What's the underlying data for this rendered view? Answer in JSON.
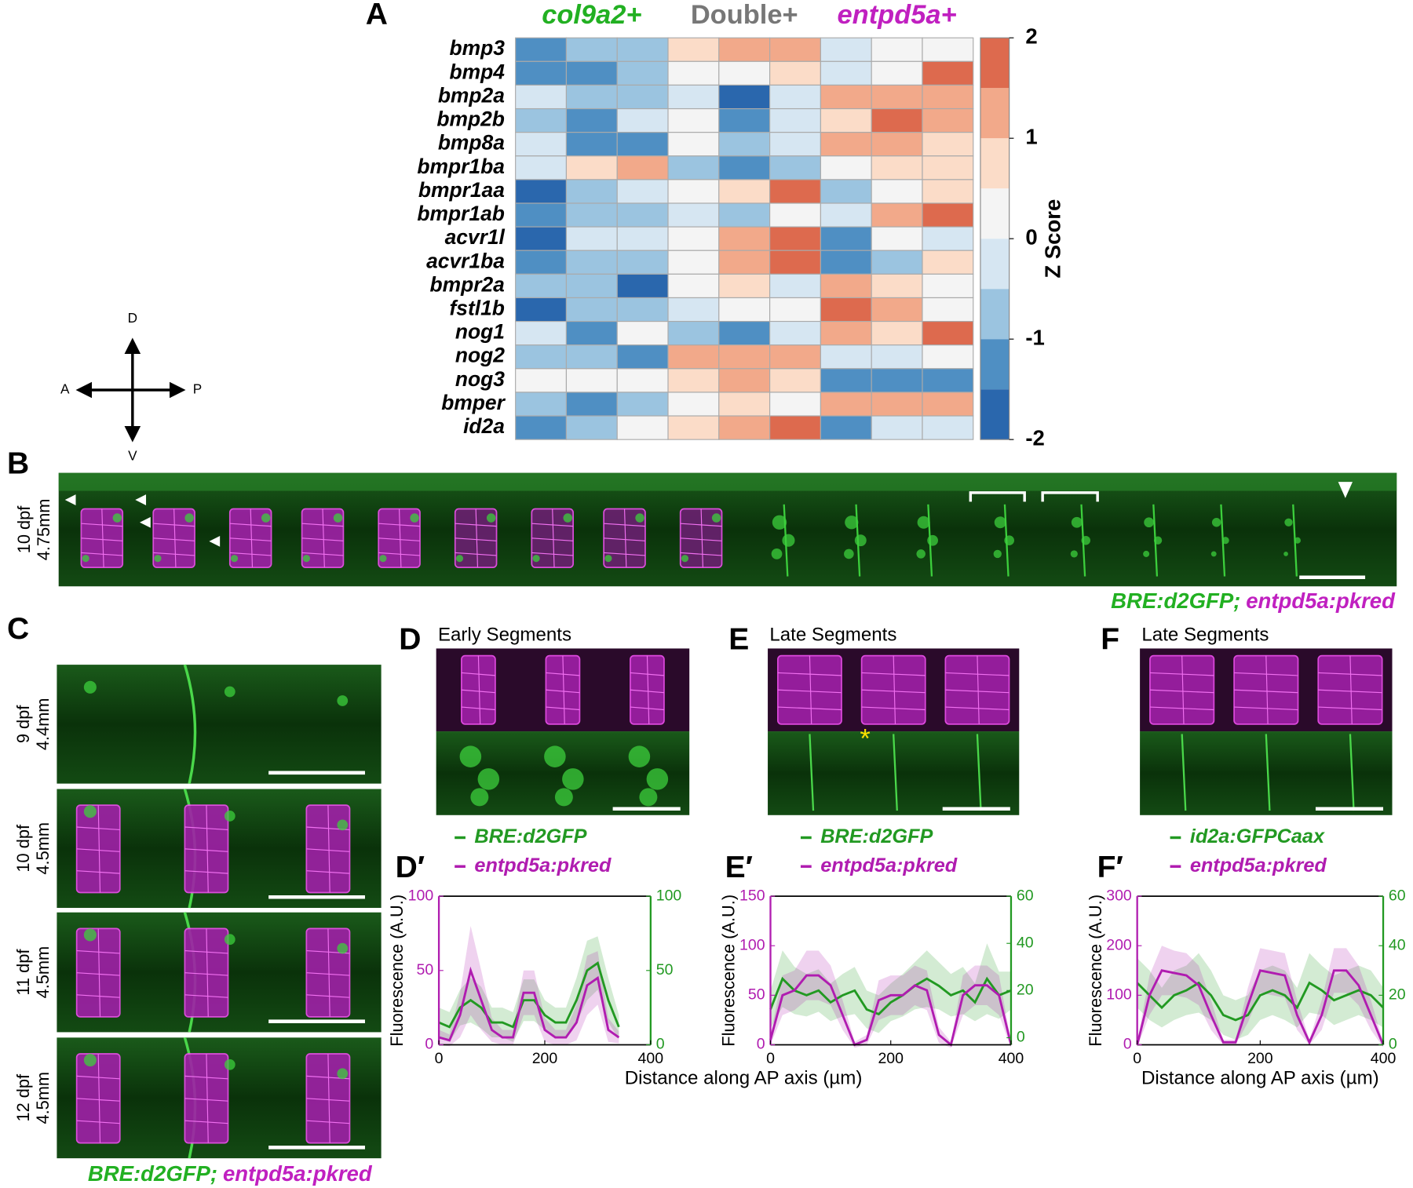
{
  "panel_labels": [
    "A",
    "B",
    "C",
    "D",
    "E",
    "F",
    "D′",
    "E′",
    "F′"
  ],
  "compass": {
    "up": "D",
    "down": "V",
    "left": "A",
    "right": "P"
  },
  "panel_b": {
    "stage": "10 dpf",
    "size": "4.75mm",
    "caption": [
      "BRE:d2GFP;",
      "entpd5a:pkred"
    ]
  },
  "panel_c": {
    "rows": [
      {
        "stage": "9 dpf",
        "size": "4.4mm"
      },
      {
        "stage": "10 dpf",
        "size": "4.5mm"
      },
      {
        "stage": "11 dpf",
        "size": "4.5mm"
      },
      {
        "stage": "12 dpf",
        "size": "4.5mm"
      }
    ],
    "caption": [
      "BRE:d2GFP;",
      "entpd5a:pkred"
    ]
  },
  "panel_d": {
    "title": "Early Segments"
  },
  "panel_e": {
    "title": "Late Segments"
  },
  "panel_f": {
    "title": "Late Segments"
  },
  "chart_data": [
    {
      "type": "heatmap",
      "groups": [
        {
          "name": "col9a2+",
          "color": "#22b022"
        },
        {
          "name": "Double+",
          "color": "#777777"
        },
        {
          "name": "entpd5a+",
          "color": "#c020c0"
        }
      ],
      "rows": [
        "bmp3",
        "bmp4",
        "bmp2a",
        "bmp2b",
        "bmp8a",
        "bmpr1ba",
        "bmpr1aa",
        "bmpr1ab",
        "acvr1l",
        "acvr1ba",
        "bmpr2a",
        "fstl1b",
        "nog1",
        "nog2",
        "nog3",
        "bmper",
        "id2a"
      ],
      "values": [
        [
          -1.2,
          -0.8,
          -0.8,
          0.7,
          1.2,
          1.2,
          -0.3,
          0.2,
          0.2
        ],
        [
          -1.2,
          -1.2,
          -0.8,
          0.2,
          0.2,
          0.7,
          -0.3,
          0.2,
          1.7
        ],
        [
          -0.3,
          -0.7,
          -0.7,
          -0.3,
          -1.7,
          -0.3,
          1.2,
          1.2,
          1.2
        ],
        [
          -0.7,
          -1.2,
          -0.3,
          0.2,
          -1.2,
          -0.3,
          0.7,
          1.7,
          1.2
        ],
        [
          -0.3,
          -1.2,
          -1.2,
          0.2,
          -0.7,
          -0.3,
          1.2,
          1.2,
          0.7
        ],
        [
          -0.3,
          0.7,
          1.2,
          -0.7,
          -1.2,
          -0.7,
          0.2,
          0.7,
          0.7
        ],
        [
          -1.7,
          -0.7,
          -0.3,
          0.2,
          0.7,
          1.7,
          -0.7,
          0.2,
          0.7
        ],
        [
          -1.2,
          -0.7,
          -0.7,
          -0.3,
          -0.7,
          0.2,
          -0.3,
          1.2,
          1.7
        ],
        [
          -1.7,
          -0.3,
          -0.3,
          0.2,
          1.2,
          1.7,
          -1.2,
          0.2,
          -0.3
        ],
        [
          -1.2,
          -0.7,
          -0.7,
          0.2,
          1.2,
          1.7,
          -1.2,
          -0.7,
          0.7
        ],
        [
          -0.7,
          -0.7,
          -1.7,
          0.2,
          0.7,
          -0.3,
          1.2,
          0.7,
          0.2
        ],
        [
          -1.7,
          -0.7,
          -0.7,
          -0.3,
          0.2,
          0.2,
          1.7,
          1.2,
          0.2
        ],
        [
          -0.3,
          -1.2,
          0.2,
          -0.7,
          -1.2,
          -0.3,
          1.2,
          0.7,
          1.7
        ],
        [
          -0.7,
          -0.7,
          -1.2,
          1.2,
          1.2,
          1.2,
          -0.3,
          -0.3,
          0.2
        ],
        [
          0.2,
          0.2,
          0.2,
          0.7,
          1.2,
          0.7,
          -1.2,
          -1.2,
          -1.2
        ],
        [
          -0.7,
          -1.2,
          -0.7,
          0.2,
          0.7,
          0.2,
          1.2,
          1.2,
          1.2
        ],
        [
          -1.2,
          -0.7,
          0.2,
          0.7,
          1.2,
          1.7,
          -1.2,
          -0.3,
          -0.3
        ]
      ],
      "colorbar": {
        "label": "Z Score",
        "lim": [
          -2,
          2
        ],
        "ticks": [
          2,
          1,
          0,
          -1,
          -2
        ],
        "colors": [
          "#2a67ad",
          "#4f8fc3",
          "#9bc4e0",
          "#d6e6f2",
          "#f4f4f4",
          "#fbdcc8",
          "#f2a98a",
          "#dd6a4e"
        ]
      }
    },
    {
      "type": "line",
      "ylabel": "Fluorescence (A.U.)",
      "xlim": [
        0,
        400
      ],
      "xticks": [
        0,
        200,
        400
      ],
      "ylim": [
        0,
        100
      ],
      "yticks": [
        0,
        50,
        100
      ],
      "y2lim": [
        0,
        100
      ],
      "y2ticks": [
        0,
        50,
        100
      ],
      "x": [
        0,
        20,
        40,
        60,
        80,
        100,
        120,
        140,
        160,
        180,
        200,
        220,
        240,
        260,
        280,
        300,
        320,
        340
      ],
      "series": [
        {
          "name": "BRE:d2GFP",
          "color": "#229922",
          "axis": "y2",
          "values": [
            15,
            12,
            25,
            30,
            25,
            15,
            15,
            12,
            30,
            30,
            20,
            15,
            15,
            30,
            50,
            55,
            30,
            12
          ],
          "errors": [
            10,
            10,
            12,
            15,
            14,
            10,
            10,
            10,
            14,
            14,
            10,
            10,
            10,
            15,
            20,
            18,
            15,
            8
          ]
        },
        {
          "name": "entpd5a:pkred",
          "color": "#b01cb0",
          "values": [
            5,
            3,
            20,
            50,
            30,
            10,
            5,
            5,
            35,
            35,
            10,
            5,
            5,
            15,
            40,
            45,
            10,
            5
          ],
          "errors": [
            5,
            4,
            15,
            30,
            20,
            8,
            5,
            5,
            15,
            15,
            8,
            5,
            5,
            12,
            20,
            18,
            8,
            4
          ]
        }
      ]
    },
    {
      "type": "line",
      "xlabel": "Distance along AP axis (µm)",
      "ylabel": "Fluorescence (A.U.)",
      "xlim": [
        0,
        400
      ],
      "xticks": [
        0,
        200,
        400
      ],
      "ylim": [
        0,
        150
      ],
      "yticks": [
        0,
        50,
        100,
        150
      ],
      "y2lim": [
        -3,
        60
      ],
      "y2ticks": [
        0,
        20,
        40,
        60
      ],
      "x": [
        0,
        20,
        40,
        60,
        80,
        100,
        120,
        140,
        160,
        180,
        200,
        220,
        240,
        260,
        280,
        300,
        320,
        340,
        360,
        380,
        400
      ],
      "series": [
        {
          "name": "BRE:d2GFP",
          "color": "#229922",
          "axis": "y2",
          "values": [
            12,
            25,
            20,
            18,
            20,
            15,
            18,
            20,
            12,
            10,
            15,
            18,
            22,
            25,
            22,
            18,
            20,
            15,
            25,
            18,
            20
          ],
          "errors": [
            8,
            12,
            10,
            9,
            9,
            8,
            9,
            10,
            8,
            8,
            8,
            9,
            10,
            12,
            10,
            9,
            10,
            8,
            15,
            10,
            8
          ]
        },
        {
          "name": "entpd5a:pkred",
          "color": "#b01cb0",
          "values": [
            5,
            50,
            55,
            70,
            70,
            60,
            30,
            0,
            5,
            45,
            50,
            50,
            60,
            55,
            10,
            0,
            50,
            60,
            60,
            50,
            0
          ],
          "errors": [
            5,
            20,
            20,
            25,
            25,
            20,
            15,
            3,
            5,
            20,
            20,
            20,
            20,
            20,
            8,
            3,
            20,
            20,
            20,
            20,
            3
          ]
        }
      ]
    },
    {
      "type": "line",
      "xlabel": "Distance along AP axis (µm)",
      "ylabel": "Fluorescence (A.U.)",
      "xlim": [
        0,
        400
      ],
      "xticks": [
        0,
        200,
        400
      ],
      "ylim": [
        0,
        300
      ],
      "yticks": [
        0,
        100,
        200,
        300
      ],
      "y2lim": [
        0,
        60
      ],
      "y2ticks": [
        0,
        20,
        40,
        60
      ],
      "x": [
        0,
        20,
        40,
        60,
        80,
        100,
        120,
        140,
        160,
        180,
        200,
        220,
        240,
        260,
        280,
        300,
        320,
        340,
        360,
        380,
        400
      ],
      "series": [
        {
          "name": "id2a:GFPCaax",
          "color": "#229922",
          "axis": "y2",
          "values": [
            25,
            20,
            15,
            20,
            22,
            25,
            20,
            12,
            10,
            12,
            20,
            22,
            20,
            15,
            25,
            22,
            18,
            20,
            22,
            20,
            15
          ],
          "errors": [
            10,
            10,
            8,
            10,
            10,
            12,
            10,
            8,
            8,
            8,
            10,
            10,
            10,
            8,
            12,
            10,
            10,
            10,
            10,
            10,
            8
          ]
        },
        {
          "name": "entpd5a:pkred",
          "color": "#b01cb0",
          "values": [
            0,
            100,
            150,
            145,
            140,
            120,
            60,
            5,
            5,
            80,
            150,
            145,
            140,
            60,
            5,
            60,
            150,
            150,
            120,
            60,
            0
          ],
          "errors": [
            5,
            40,
            50,
            45,
            45,
            40,
            30,
            5,
            5,
            35,
            45,
            45,
            45,
            30,
            5,
            30,
            45,
            45,
            40,
            30,
            5
          ]
        }
      ]
    }
  ]
}
